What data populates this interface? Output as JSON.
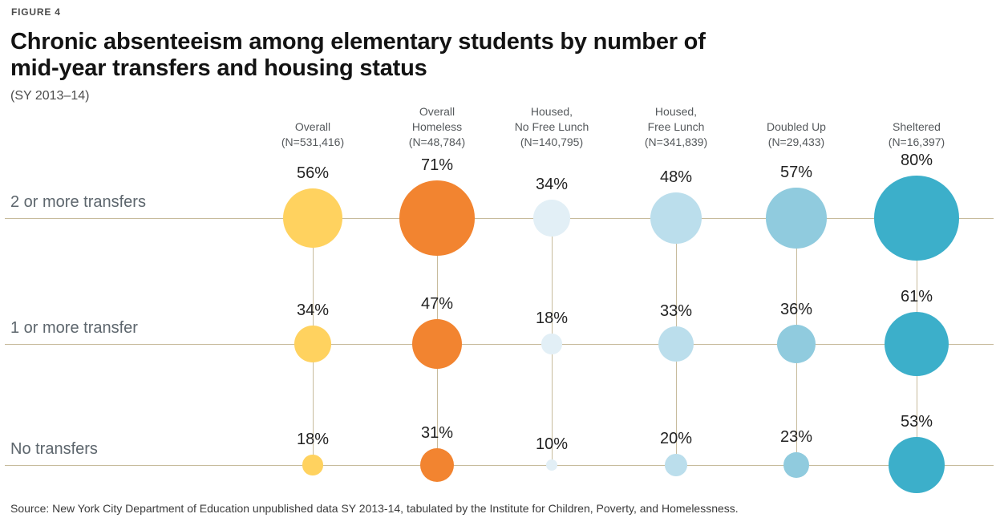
{
  "figure_label": "FIGURE 4",
  "title_lines": [
    "Chronic absenteeism among elementary students by number of",
    "mid-year transfers and housing status"
  ],
  "subtitle": "(SY 2013–14)",
  "source": "Source: New York City Department of Education unpublished data SY 2013-14, tabulated by the Institute for Children, Poverty, and Homelessness.",
  "chart_data": {
    "type": "bubble",
    "title": "Chronic absenteeism among elementary students by number of mid-year transfers and housing status",
    "subtitle": "(SY 2013–14)",
    "unit": "%",
    "grid_line_color": "#c7bb9c",
    "legend_position": "none",
    "size_encoding": "bubble radius proportional to percentage value",
    "columns": [
      {
        "name": "Overall",
        "label": "Overall\n(N=531,416)",
        "n": "531,416",
        "color": "#ffd25f"
      },
      {
        "name": "Overall Homeless",
        "label": "Overall\nHomeless\n(N=48,784)",
        "n": "48,784",
        "color": "#f28430"
      },
      {
        "name": "Housed, No Free Lunch",
        "label": "Housed,\nNo Free Lunch\n(N=140,795)",
        "n": "140,795",
        "color": "#e2eff6"
      },
      {
        "name": "Housed, Free Lunch",
        "label": "Housed,\nFree Lunch\n(N=341,839)",
        "n": "341,839",
        "color": "#bbdeec"
      },
      {
        "name": "Doubled Up",
        "label": "Doubled Up\n(N=29,433)",
        "n": "29,433",
        "color": "#90cbde"
      },
      {
        "name": "Sheltered",
        "label": "Sheltered\n(N=16,397)",
        "n": "16,397",
        "color": "#3cafca"
      }
    ],
    "rows": [
      "2 or more transfers",
      "1 or more transfer",
      "No transfers"
    ],
    "values": [
      [
        56,
        71,
        34,
        48,
        57,
        80
      ],
      [
        34,
        47,
        18,
        33,
        36,
        61
      ],
      [
        18,
        31,
        10,
        20,
        23,
        53
      ]
    ]
  }
}
